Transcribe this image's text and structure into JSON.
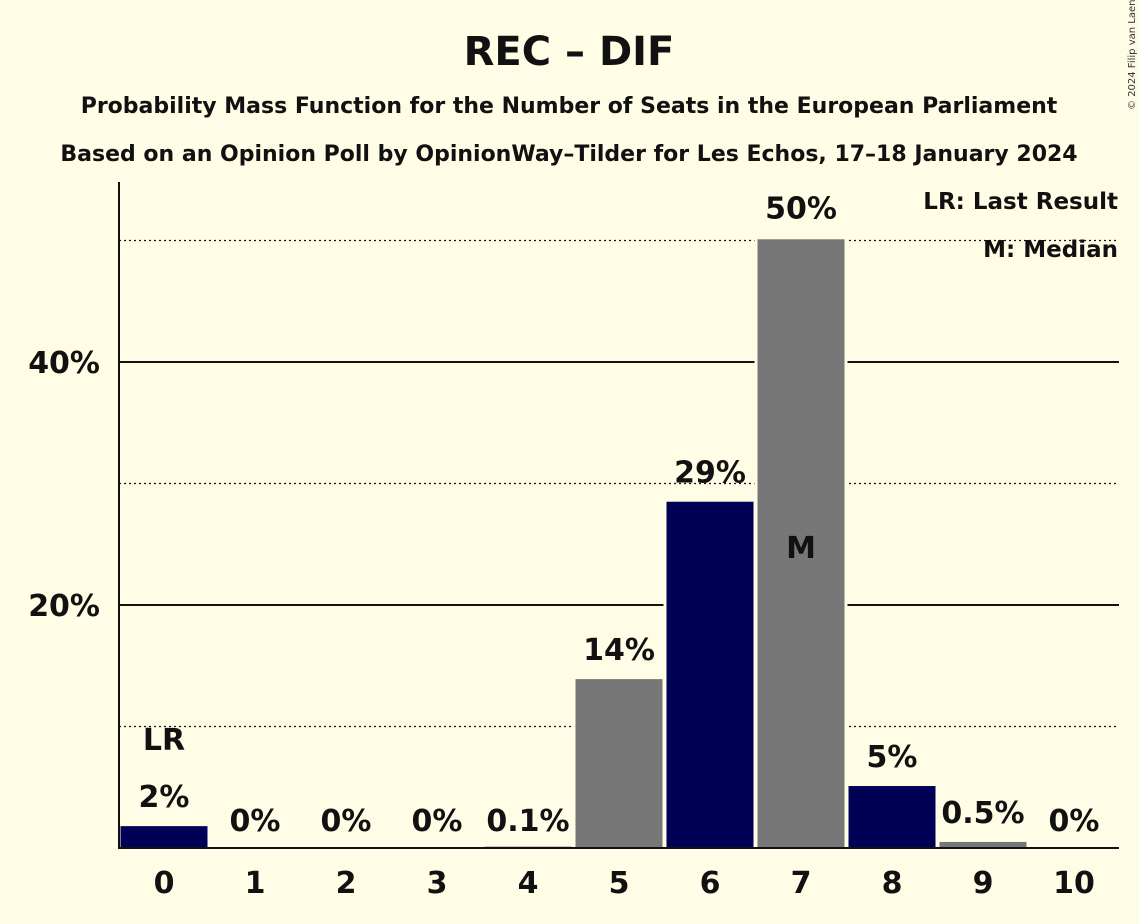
{
  "chart_data": {
    "type": "bar",
    "title": "REC – DIF",
    "subtitle": "Probability Mass Function for the Number of Seats in the European Parliament",
    "source_line": "Based on an Opinion Poll by OpinionWay–Tilder for Les Echos, 17–18 January 2024",
    "copyright": "© 2024 Filip van Laenen",
    "categories": [
      "0",
      "1",
      "2",
      "3",
      "4",
      "5",
      "6",
      "7",
      "8",
      "9",
      "10"
    ],
    "values": [
      1.8,
      0,
      0,
      0,
      0.1,
      13.9,
      28.5,
      50.1,
      5.1,
      0.5,
      0
    ],
    "value_labels": [
      "2%",
      "0%",
      "0%",
      "0%",
      "0.1%",
      "14%",
      "29%",
      "50%",
      "5%",
      "0.5%",
      "0%"
    ],
    "bar_colors": [
      "#000055",
      "#000055",
      "#000055",
      "#000055",
      "#000055",
      "#777777",
      "#000055",
      "#777777",
      "#000055",
      "#777777",
      "#000055"
    ],
    "ylim": [
      0,
      55
    ],
    "yticks": [
      20,
      40
    ],
    "ytick_labels": [
      "20%",
      "40%"
    ],
    "minor_gridlines": [
      10,
      30,
      50
    ],
    "last_result_index": 0,
    "last_result_marker": "LR",
    "median_index": 7,
    "median_marker": "M",
    "legend": {
      "placement": "top-right",
      "last_result": "LR: Last Result",
      "median": "M: Median"
    },
    "colors": {
      "background": "#fffde6",
      "primary": "#000055",
      "secondary": "#777777"
    }
  }
}
